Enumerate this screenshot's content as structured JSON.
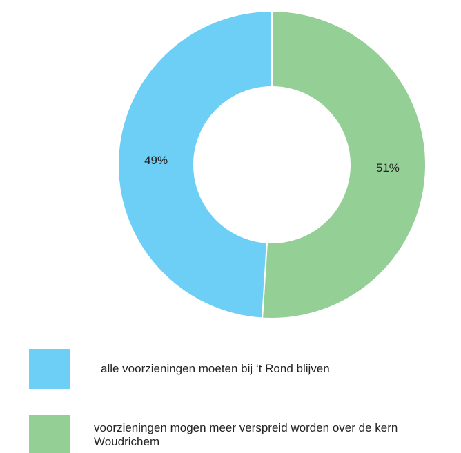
{
  "chart_data": {
    "type": "donut",
    "categories": [
      "alle voorzieningen moeten bij ‘t Rond blijven",
      "voorzieningen mogen meer verspreid worden over de kern Woudrichem"
    ],
    "values": [
      49,
      51
    ],
    "value_labels": [
      "49%",
      "51%"
    ],
    "colors": [
      "#6dcff6",
      "#94cf96"
    ]
  }
}
